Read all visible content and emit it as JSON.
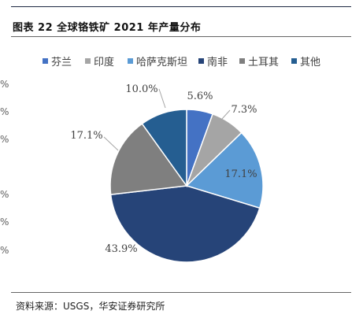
{
  "header": {
    "title": "图表 22  全球铬铁矿 2021 年产量分布"
  },
  "footer": {
    "source": "资料来源：USGS，华安证券研究所"
  },
  "left_fragments": [
    "%",
    "%",
    "%",
    "%",
    "%",
    "%"
  ],
  "chart_data": {
    "type": "pie",
    "title": "图表 22  全球铬铁矿 2021 年产量分布",
    "legend_position": "top",
    "categories": [
      "芬兰",
      "印度",
      "哈萨克斯坦",
      "南非",
      "土耳其",
      "其他"
    ],
    "values": [
      5.6,
      7.3,
      17.1,
      43.9,
      17.1,
      10.0
    ],
    "labels": [
      "5.6%",
      "7.3%",
      "17.1%",
      "43.9%",
      "17.1%",
      "10.0%"
    ],
    "colors": [
      "#4472c4",
      "#a5a5a5",
      "#5b9bd5",
      "#264478",
      "#7f7f7f",
      "#255e91"
    ]
  }
}
